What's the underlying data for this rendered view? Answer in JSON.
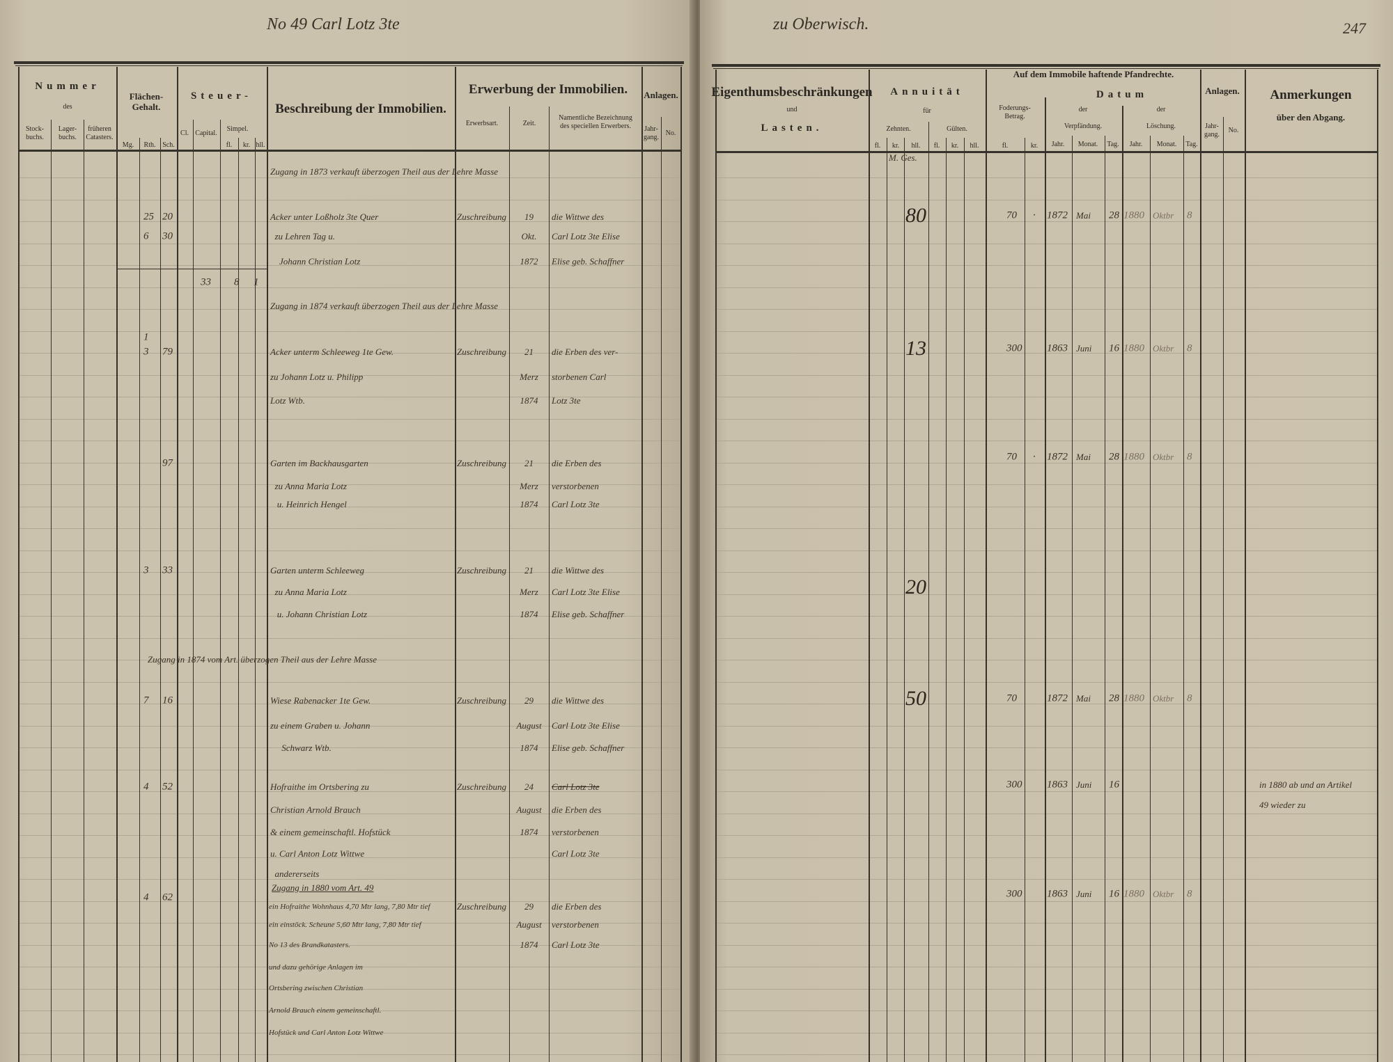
{
  "top_annotation": {
    "left": "No 49  Carl  Lotz 3te",
    "right": "zu Oberwisch.",
    "page_number": "247"
  },
  "left_header": {
    "nummer": "Nummer",
    "des": "des",
    "stockbuchs": "Stock-\nbuchs.",
    "lagerbuchs": "Lager-\nbuchs.",
    "frueheren": "früheren\nCatasters.",
    "flaechen": "Flächen-\nGehalt.",
    "mg": "Mg.",
    "rth": "Rth.",
    "sch": "Sch.",
    "steuer": "Steuer-",
    "cl": "Cl.",
    "capital": "Capital.",
    "simpel": "Simpel.",
    "fl": "fl.",
    "kr": "kr.",
    "hll": "hll.",
    "beschreibung": "Beschreibung der Immobilien.",
    "erwerbung": "Erwerbung der Immobilien.",
    "erwerbsart": "Erwerbsart.",
    "zeit": "Zeit.",
    "namentliche": "Namentliche Bezeichnung\ndes speciellen Erwerbers.",
    "anlagen": "Anlagen.",
    "jahrgang": "Jahr-\ngang.",
    "no": "No."
  },
  "right_header": {
    "eigenthum": "Eigenthumsbeschränkungen",
    "und": "und",
    "lasten": "Lasten.",
    "annuitaet": "Annuität",
    "fuer": "für",
    "zehnten": "Zehnten.",
    "gulten": "Gülten.",
    "fl": "fl.",
    "kr": "kr.",
    "hll": "hll.",
    "pfandrechte": "Auf dem Immobile haftende Pfandrechte.",
    "foderung": "Foderungs-\nBetrag.",
    "datum": "Datum",
    "der": "der",
    "verpfaendung": "Verpfändung.",
    "loeschung": "Löschung.",
    "jahr": "Jahr.",
    "monat": "Monat.",
    "tag": "Tag.",
    "anlagen": "Anlagen.",
    "jahrgang": "Jahr-\ngang.",
    "no": "No.",
    "anmerkungen": "Anmerkungen",
    "ueber": "über den Abgang."
  },
  "left_entries": [
    {
      "span": "Zugang in 1873 verkauft überzogen Theil aus der Lehre Masse"
    },
    {
      "mth": "25",
      "sch": "20",
      "desc": "Acker unter Loßholz 3te Quer",
      "art": "Zuschreibung",
      "zeit": "19",
      "name": "die Wittwe des"
    },
    {
      "mth": "6",
      "sch": "30",
      "desc": "  zu Lehren Tag u.",
      "zeit": "Okt.",
      "name": "Carl Lotz 3te Elise"
    },
    {
      "desc": "    Johann Christian Lotz",
      "zeit": "1872",
      "name": "Elise geb. Schaffner"
    },
    {
      "capital": "33",
      "fl": "8",
      "kr": "1"
    },
    {
      "span": "Zugang in 1874 verkauft überzogen Theil aus der Lehre Masse"
    },
    {
      "mth": "1"
    },
    {
      "mth": "3",
      "sch": "79",
      "desc": "Acker unterm Schleeweg 1te Gew.",
      "art": "Zuschreibung",
      "zeit": "21",
      "name": "die Erben des ver-"
    },
    {
      "desc": "zu Johann Lotz u. Philipp",
      "zeit": "Merz",
      "name": "storbenen Carl"
    },
    {
      "desc": "Lotz Wtb.",
      "zeit": "1874",
      "name": "Lotz 3te"
    },
    {
      "sch": "97",
      "desc": "Garten im Backhausgarten",
      "art": "Zuschreibung",
      "zeit": "21",
      "name": "die Erben des"
    },
    {
      "desc": "  zu Anna Maria Lotz",
      "zeit": "Merz",
      "name": "verstorbenen"
    },
    {
      "desc": "   u. Heinrich Hengel",
      "zeit": "1874",
      "name": "Carl Lotz 3te"
    },
    {
      "mth": "3",
      "sch": "33",
      "desc": "Garten unterm Schleeweg",
      "art": "Zuschreibung",
      "zeit": "21",
      "name": "die Wittwe des"
    },
    {
      "desc": "  zu Anna Maria Lotz",
      "zeit": "Merz",
      "name": "Carl Lotz 3te Elise"
    },
    {
      "desc": "   u. Johann Christian Lotz",
      "zeit": "1874",
      "name": "Elise geb. Schaffner"
    },
    {
      "span_wide": "Zugang in 1874 vom Art. überzogen Theil aus der Lehre Masse"
    },
    {
      "mth": "7",
      "sch": "16",
      "desc": "Wiese Rabenacker 1te Gew.",
      "art": "Zuschreibung",
      "zeit": "29",
      "name": "die Wittwe des"
    },
    {
      "desc": "zu einem Graben u. Johann",
      "zeit": "August",
      "name": "Carl Lotz 3te Elise"
    },
    {
      "desc": "     Schwarz Wtb.",
      "zeit": "1874",
      "name": "Elise geb. Schaffner"
    },
    {
      "mth": "4",
      "sch": "52",
      "desc": "Hofraithe im Ortsbering zu",
      "art": "Zuschreibung",
      "zeit": "24",
      "name_struck": "Carl Lotz 3te"
    },
    {
      "desc": "Christian Arnold Brauch",
      "zeit": "August",
      "name": "die Erben des"
    },
    {
      "desc": "& einem gemeinschaftl. Hofstück",
      "zeit": "1874",
      "name": "verstorbenen"
    },
    {
      "desc": "u. Carl Anton Lotz Wittwe",
      "name": "Carl Lotz 3te"
    },
    {
      "desc": "  andererseits"
    },
    {
      "desc_under": "Zugang in 1880 vom Art. 49"
    },
    {
      "mth": "4",
      "sch": "62"
    },
    {
      "desc_small": "ein Hofraithe Wohnhaus 4,70 Mtr lang, 7,80 Mtr tief",
      "art": "Zuschreibung",
      "zeit": "29",
      "name": "die Erben des"
    },
    {
      "desc_small": "ein einstöck. Scheune 5,60 Mtr lang, 7,80 Mtr tief",
      "zeit": "August",
      "name": "verstorbenen"
    },
    {
      "desc_small": "No 13 des Brandkatasters.",
      "zeit": "1874",
      "name": "Carl Lotz 3te"
    },
    {
      "desc_small": "und dazu gehörige Anlagen im"
    },
    {
      "desc_small": "Ortsbering zwischen Christian"
    },
    {
      "desc_small": "Arnold Brauch einem gemeinschaftl."
    },
    {
      "desc_small": "Hofstück und Carl Anton Lotz Wittwe"
    }
  ],
  "right_entries": [
    {
      "zehnten_note": "M. Ges."
    },
    {
      "zehnten": "80",
      "fl": "70",
      "kr": "·",
      "v_jahr": "1872",
      "v_monat": "Mai",
      "v_tag": "28",
      "l_jahr": "1880",
      "l_monat": "Oktbr",
      "l_tag": "8"
    },
    {
      "zehnten": "13",
      "fl": "300",
      "v_jahr": "1863",
      "v_monat": "Juni",
      "v_tag": "16",
      "l_jahr": "1880",
      "l_monat": "Oktbr",
      "l_tag": "8"
    },
    {
      "fl": "70",
      "kr": "·",
      "v_jahr": "1872",
      "v_monat": "Mai",
      "v_tag": "28",
      "l_jahr": "1880",
      "l_monat": "Oktbr",
      "l_tag": "8"
    },
    {
      "zehnten": "20"
    },
    {
      "zehnten": "50",
      "fl": "70",
      "v_jahr": "1872",
      "v_monat": "Mai",
      "v_tag": "28",
      "l_jahr": "1880",
      "l_monat": "Oktbr",
      "l_tag": "8"
    },
    {
      "fl": "300",
      "v_jahr": "1863",
      "v_monat": "Juni",
      "v_tag": "16",
      "anm": "in 1880 ab und an Artikel"
    },
    {
      "anm": "49 wieder zu"
    },
    {
      "fl": "300",
      "v_jahr": "1863",
      "v_monat": "Juni",
      "v_tag": "16",
      "l_jahr": "1880",
      "l_monat": "Oktbr",
      "l_tag": "8"
    }
  ]
}
